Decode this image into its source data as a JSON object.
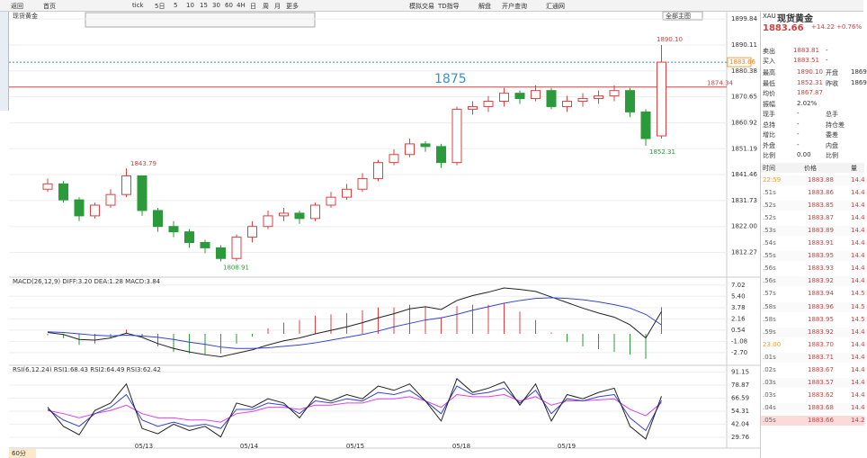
{
  "toolbar": {
    "items": [
      "返回",
      "首页",
      "tick",
      "5日",
      "5",
      "10",
      "15",
      "30",
      "60",
      "4H",
      "日",
      "周",
      "月",
      "更多",
      "模拟交易",
      "TD指导",
      "解盘",
      "开户查询",
      "汇通网"
    ]
  },
  "chart": {
    "symbol": "现货黄金",
    "main_button": "全部主图",
    "annotation": "1875",
    "ylim": [
      1803.0,
      1902.6
    ],
    "yticks": [
      1899.84,
      1890.11,
      1880.38,
      1870.65,
      1860.92,
      1851.19,
      1841.46,
      1831.73,
      {
        "value": 1822,
        "label": "1822.00"
      },
      1812.27
    ],
    "open": [
      1836,
      1838,
      1832,
      1826,
      1830,
      1834,
      1841,
      1828,
      1822,
      1820,
      1816,
      1814,
      1810,
      1818,
      1822,
      1826,
      1827,
      1825,
      1830,
      1833,
      1836,
      1840,
      1846,
      1849,
      1853,
      1852,
      1846,
      1866,
      1867,
      1869,
      1872,
      1870,
      1873,
      1867,
      1869,
      1870,
      1871,
      1873,
      1865,
      1856
    ],
    "high": [
      1840,
      1839,
      1833,
      1831,
      1836,
      1843.79,
      1841,
      1829,
      1824,
      1821,
      1817,
      1815,
      1819,
      1824,
      1828,
      1829,
      1828,
      1831,
      1835,
      1838,
      1842,
      1847,
      1851,
      1855,
      1854,
      1853,
      1867,
      1869,
      1871,
      1874,
      1873,
      1875,
      1874,
      1871,
      1872,
      1873,
      1875,
      1874,
      1866,
      1890.1
    ],
    "low": [
      1835,
      1831,
      1824,
      1825,
      1829,
      1833,
      1826,
      1820,
      1818,
      1814,
      1812,
      1808.91,
      1809,
      1816,
      1821,
      1824,
      1823,
      1824,
      1829,
      1832,
      1835,
      1839,
      1845,
      1848,
      1850,
      1844,
      1845,
      1864,
      1865,
      1867,
      1868,
      1869,
      1866,
      1865,
      1867,
      1868,
      1869,
      1863,
      1852.31,
      1855
    ],
    "close": [
      1838,
      1832,
      1826,
      1830,
      1834,
      1841,
      1828,
      1822,
      1820,
      1816,
      1814,
      1810,
      1818,
      1822,
      1826,
      1827,
      1825,
      1830,
      1833,
      1836,
      1840,
      1846,
      1849,
      1853,
      1852,
      1846,
      1866,
      1867,
      1869,
      1872,
      1870,
      1873,
      1867,
      1869,
      1870,
      1871,
      1873,
      1865,
      1855,
      1883.66
    ],
    "price_labels": [
      {
        "value": 1890.1,
        "label": "1890.10"
      },
      {
        "value": 1843.79,
        "label": "1843.79"
      },
      {
        "value": 1808.91,
        "label": "1808.91"
      },
      {
        "value": 1852.31,
        "label": "1852.31"
      }
    ],
    "support_line": {
      "value": 1874.34,
      "label": "1874.34"
    },
    "last_price": {
      "value": 1883.66,
      "label": "1883.66"
    },
    "dates": [
      "05/13",
      "05/14",
      "05/15",
      "05/18",
      "05/19"
    ]
  },
  "macd": {
    "title": "MACD(26,12,9) DIFF:3.20 DEA:1.28 MACD:3.84",
    "ylim": [
      -4.4,
      7.9
    ],
    "yticks": [
      7.02,
      {
        "value": 5.4,
        "label": "5.40"
      },
      3.78,
      2.16,
      0.54,
      -1.08,
      {
        "value": -2.7,
        "label": "-2.70"
      }
    ],
    "diff": [
      0.2,
      -0.1,
      -0.8,
      -0.9,
      -0.6,
      0.1,
      -0.5,
      -1.4,
      -2.1,
      -2.6,
      -3.0,
      -3.3,
      -2.8,
      -2.3,
      -1.6,
      -1.0,
      -0.6,
      0.0,
      0.5,
      1.0,
      1.6,
      2.3,
      2.9,
      3.6,
      3.9,
      3.5,
      4.8,
      5.5,
      6.0,
      6.6,
      6.4,
      6.1,
      5.3,
      4.5,
      3.7,
      3.0,
      2.4,
      1.3,
      -0.6,
      3.2
    ],
    "dea": [
      0.3,
      0.2,
      0.0,
      -0.2,
      -0.3,
      -0.2,
      -0.3,
      -0.5,
      -0.8,
      -1.2,
      -1.5,
      -1.9,
      -2.1,
      -2.1,
      -2.0,
      -1.8,
      -1.6,
      -1.3,
      -0.9,
      -0.5,
      -0.1,
      0.4,
      1.0,
      1.5,
      2.0,
      2.3,
      2.8,
      3.4,
      3.9,
      4.4,
      4.8,
      5.1,
      5.2,
      5.1,
      4.9,
      4.6,
      4.2,
      3.7,
      2.8,
      1.28
    ],
    "macd": [
      -0.2,
      -0.6,
      -1.6,
      -1.4,
      -0.6,
      0.6,
      -0.4,
      -1.8,
      -2.6,
      -2.8,
      -3.0,
      -2.8,
      -1.4,
      -0.4,
      0.8,
      1.6,
      2.0,
      2.6,
      2.8,
      3.0,
      3.4,
      3.8,
      3.8,
      4.2,
      3.8,
      2.4,
      4.0,
      4.2,
      4.2,
      4.4,
      3.2,
      2.0,
      0.2,
      -1.2,
      -1.8,
      -2.2,
      -2.6,
      -3.0,
      -3.6,
      3.84
    ]
  },
  "rsi": {
    "title": "RSI(6,12,24) RSI1:68.43 RSI2:64.49 RSI3:62.42",
    "ylim": [
      20.3,
      95.9
    ],
    "yticks": [
      91.15,
      78.87,
      66.59,
      54.31,
      42.04,
      29.76
    ],
    "rsi1": [
      58,
      40,
      32,
      55,
      62,
      80,
      38,
      33,
      42,
      36,
      40,
      30,
      62,
      58,
      66,
      62,
      48,
      68,
      64,
      70,
      66,
      78,
      74,
      80,
      64,
      45,
      85,
      72,
      76,
      82,
      60,
      80,
      45,
      70,
      66,
      72,
      76,
      40,
      28,
      68.43
    ],
    "rsi2": [
      56,
      46,
      40,
      52,
      58,
      70,
      46,
      40,
      44,
      40,
      42,
      38,
      56,
      56,
      62,
      60,
      52,
      64,
      62,
      66,
      64,
      72,
      70,
      74,
      64,
      52,
      78,
      70,
      72,
      76,
      62,
      74,
      52,
      66,
      64,
      68,
      70,
      48,
      36,
      64.49
    ],
    "rsi3": [
      55,
      52,
      48,
      52,
      55,
      60,
      52,
      48,
      48,
      46,
      46,
      44,
      52,
      54,
      58,
      58,
      56,
      60,
      60,
      62,
      62,
      66,
      66,
      68,
      64,
      58,
      70,
      68,
      68,
      70,
      64,
      68,
      60,
      64,
      64,
      65,
      66,
      56,
      50,
      62.42
    ]
  },
  "bottom_tabs": [
    "60分"
  ],
  "quote": {
    "code": "XAU",
    "name": "现货黄金",
    "price": "1883.66",
    "change": "+14.22",
    "pct": "+0.76%",
    "book": [
      [
        "卖出",
        "1883.81",
        "-"
      ],
      [
        "买入",
        "1883.51",
        "-"
      ]
    ],
    "stats": [
      [
        "最高",
        "1890.10",
        "开盘",
        "1869"
      ],
      [
        "最低",
        "1852.31",
        "昨收",
        "1869"
      ],
      [
        "均价",
        "1867.87"
      ],
      [
        "振幅",
        "2.02%"
      ],
      [
        "现手",
        "-",
        "总手"
      ],
      [
        "总持",
        "-",
        "持仓差"
      ],
      [
        "增比",
        "-",
        "委差"
      ],
      [
        "外盘",
        "-",
        "内盘"
      ],
      [
        "比例",
        "0.00",
        "比例"
      ]
    ],
    "trade_header": [
      "时间",
      "价格",
      "量"
    ],
    "trades": [
      [
        "22:59",
        "1883.88",
        "14.4"
      ],
      [
        ".51s",
        "1883.86",
        "14.4"
      ],
      [
        ".52s",
        "1883.85",
        "14.4"
      ],
      [
        ".52s",
        "1883.87",
        "14.4"
      ],
      [
        ".53s",
        "1883.89",
        "14.4"
      ],
      [
        ".54s",
        "1883.91",
        "14.4"
      ],
      [
        ".55s",
        "1883.95",
        "14.4"
      ],
      [
        ".56s",
        "1883.93",
        "14.4"
      ],
      [
        ".56s",
        "1883.92",
        "14.4"
      ],
      [
        ".57s",
        "1883.94",
        "14.5"
      ],
      [
        ".58s",
        "1883.96",
        "14.5"
      ],
      [
        ".58s",
        "1883.95",
        "14.5"
      ],
      [
        ".59s",
        "1883.92",
        "14.4"
      ],
      [
        "23:00",
        "1883.70",
        "14.4"
      ],
      [
        ".01s",
        "1883.71",
        "14.4"
      ],
      [
        ".02s",
        "1883.67",
        "14.4"
      ],
      [
        ".03s",
        "1883.57",
        "14.4"
      ],
      [
        ".03s",
        "1883.62",
        "14.4"
      ],
      [
        ".04s",
        "1883.68",
        "14.4"
      ],
      [
        ".05s",
        "1883.66",
        "14.2"
      ]
    ]
  }
}
